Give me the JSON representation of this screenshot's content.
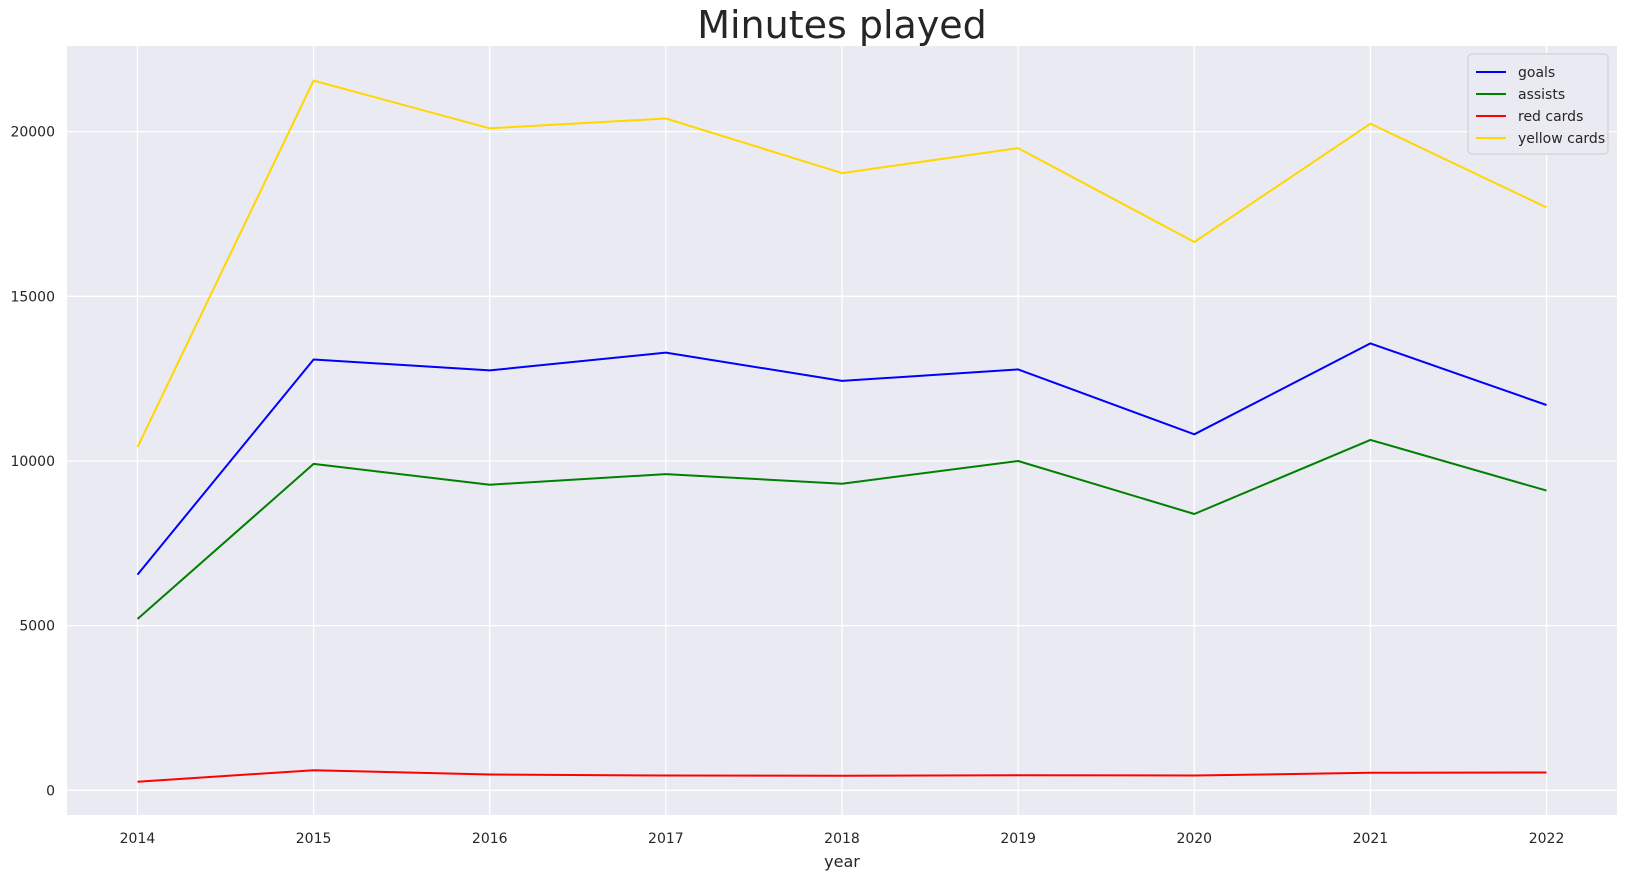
{
  "chart_data": {
    "type": "line",
    "title": "Minutes played",
    "xlabel": "year",
    "ylabel": "",
    "x": [
      2014,
      2015,
      2016,
      2017,
      2018,
      2019,
      2020,
      2021,
      2022
    ],
    "xlim": [
      2013.6,
      2022.4
    ],
    "ylim": [
      -750,
      22600
    ],
    "yticks": [
      0,
      5000,
      10000,
      15000,
      20000
    ],
    "grid": true,
    "legend_position": "top-right",
    "series": [
      {
        "name": "goals",
        "color": "#0000ff",
        "values": [
          6550,
          13080,
          12750,
          13290,
          12430,
          12780,
          10810,
          13570,
          11700
        ]
      },
      {
        "name": "assists",
        "color": "#008000",
        "values": [
          5200,
          9910,
          9280,
          9600,
          9310,
          10000,
          8390,
          10640,
          9100
        ]
      },
      {
        "name": "red cards",
        "color": "#ff0000",
        "values": [
          260,
          610,
          480,
          450,
          440,
          460,
          450,
          530,
          540
        ]
      },
      {
        "name": "yellow cards",
        "color": "#ffd700",
        "values": [
          10420,
          21550,
          20100,
          20400,
          18740,
          19500,
          16650,
          20240,
          17700
        ]
      }
    ]
  }
}
